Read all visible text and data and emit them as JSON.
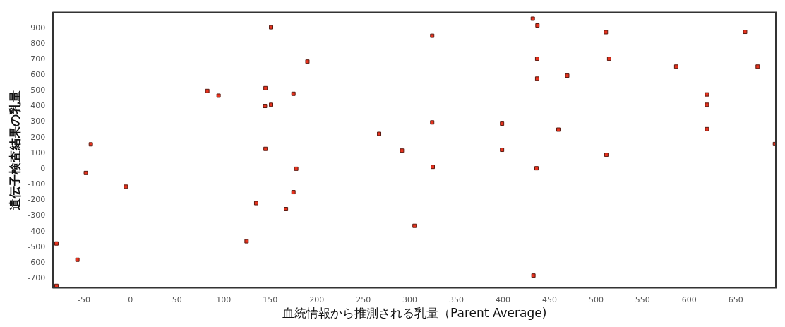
{
  "chart_data": {
    "type": "scatter",
    "xlabel": "血統情報から推測される乳量（Parent Average)",
    "ylabel": "遺伝子検査結果の乳量",
    "xlim": [
      -83,
      693
    ],
    "ylim": [
      -760,
      1000
    ],
    "xticks": [
      -50,
      0,
      50,
      100,
      150,
      200,
      250,
      300,
      350,
      400,
      450,
      500,
      550,
      600,
      650
    ],
    "yticks": [
      -700,
      -600,
      -500,
      -400,
      -300,
      -200,
      -100,
      0,
      100,
      200,
      300,
      400,
      500,
      600,
      700,
      800,
      900
    ],
    "grid": false,
    "legend": false,
    "marker": "square",
    "series": [
      {
        "color": "#e8321e",
        "x": [
          -79.5,
          -79.5,
          -57,
          -48,
          -42.6,
          -5,
          82.5,
          94.6,
          124.7,
          135,
          151,
          324,
          190,
          145,
          175,
          144.5,
          151,
          324,
          399,
          267,
          145,
          291.5,
          399,
          178,
          324.6,
          175,
          167,
          305,
          432,
          437,
          510.5,
          660,
          436.7,
          514,
          586,
          673.5,
          469,
          436.7,
          619,
          619,
          459.5,
          619,
          692,
          511,
          436,
          432.7
        ],
        "values": [
          -477,
          -748,
          -581,
          -26,
          157,
          -114,
          498,
          468,
          -463,
          -219,
          905,
          851,
          686,
          516,
          480,
          402,
          410,
          297,
          289,
          224,
          128,
          117,
          122,
          1,
          13,
          -149,
          -257,
          -364,
          960,
          917,
          874,
          876,
          704,
          704,
          654,
          654,
          596,
          577,
          476,
          410,
          251,
          254,
          159,
          90,
          4,
          -682
        ]
      }
    ]
  }
}
